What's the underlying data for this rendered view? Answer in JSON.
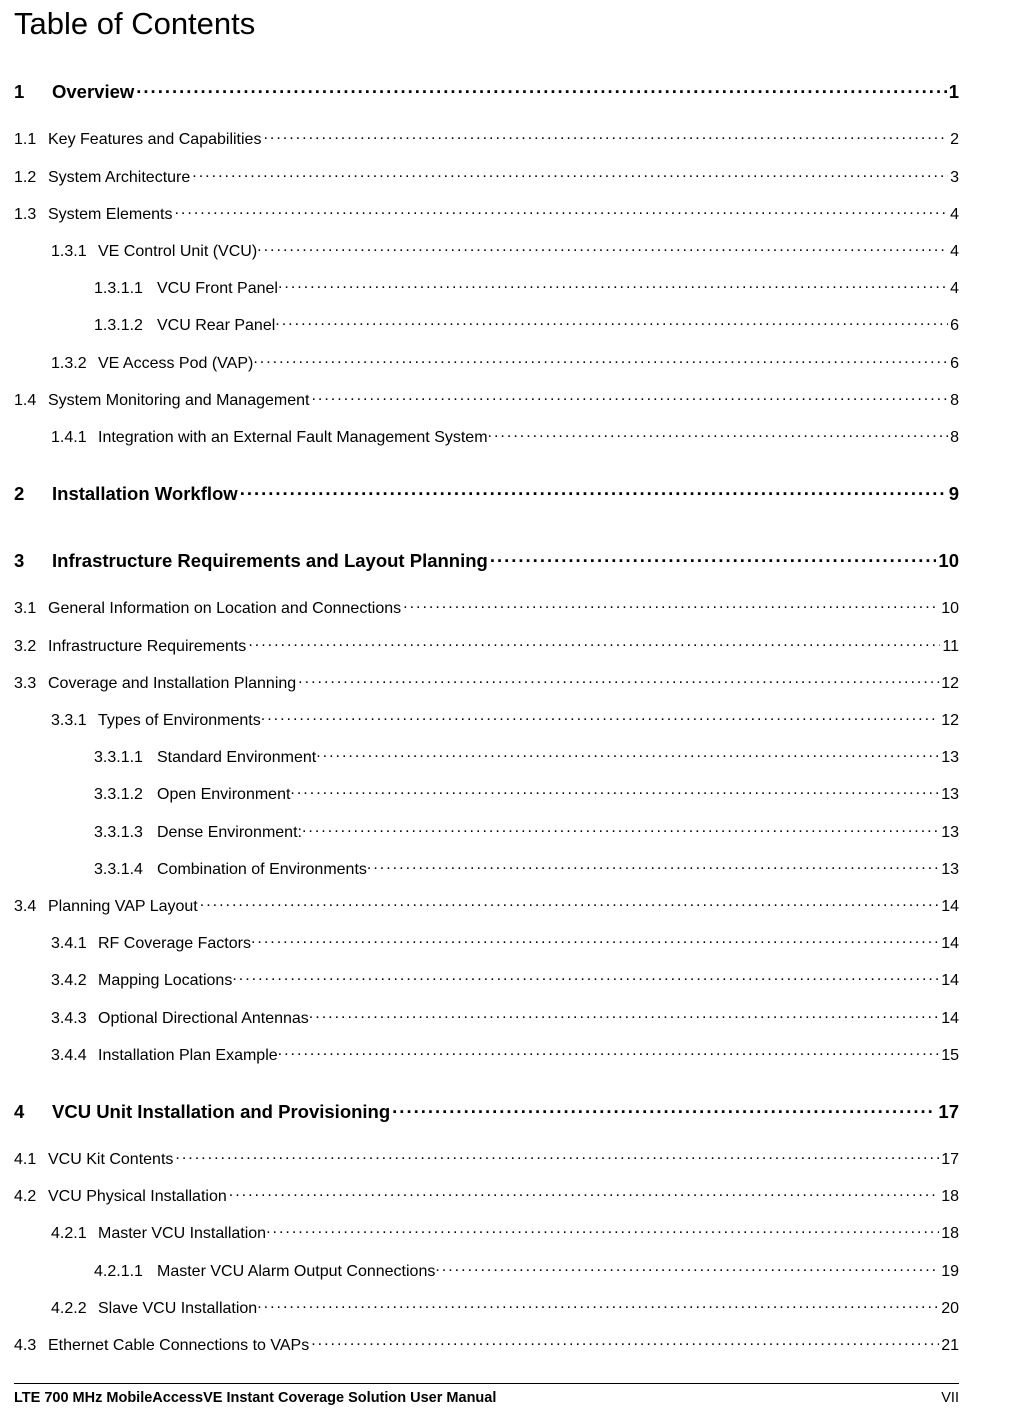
{
  "title": "Table of Contents",
  "footer": {
    "left": "LTE 700 MHz MobileAccessVE Instant Coverage Solution User Manual",
    "right": "VII"
  },
  "toc": [
    {
      "n": "1",
      "t": "Overview",
      "p": "1",
      "lvl": 1
    },
    {
      "n": "1.1",
      "t": "Key Features and Capabilities",
      "p": "2",
      "lvl": 2
    },
    {
      "n": "1.2",
      "t": "System Architecture",
      "p": "3",
      "lvl": 2
    },
    {
      "n": "1.3",
      "t": "System Elements",
      "p": "4",
      "lvl": 2
    },
    {
      "n": "1.3.1",
      "t": "VE Control Unit (VCU)",
      "p": "4",
      "lvl": 3
    },
    {
      "n": "1.3.1.1",
      "t": "VCU Front Panel",
      "p": "4",
      "lvl": 4
    },
    {
      "n": "1.3.1.2",
      "t": "VCU Rear Panel",
      "p": "6",
      "lvl": 4
    },
    {
      "n": "1.3.2",
      "t": "VE Access Pod (VAP)",
      "p": "6",
      "lvl": 3
    },
    {
      "n": "1.4",
      "t": "System Monitoring and Management",
      "p": "8",
      "lvl": 2
    },
    {
      "n": "1.4.1",
      "t": "Integration with an External Fault Management System",
      "p": "8",
      "lvl": 3
    },
    {
      "gap": true
    },
    {
      "n": "2",
      "t": "Installation Workflow",
      "p": "9",
      "lvl": 1
    },
    {
      "gap": true
    },
    {
      "n": "3",
      "t": "Infrastructure Requirements and Layout Planning",
      "p": "10",
      "lvl": 1
    },
    {
      "n": "3.1",
      "t": "General Information on Location and Connections",
      "p": "10",
      "lvl": 2
    },
    {
      "n": "3.2",
      "t": "Infrastructure Requirements",
      "p": "11",
      "lvl": 2
    },
    {
      "n": "3.3",
      "t": "Coverage and Installation Planning",
      "p": "12",
      "lvl": 2
    },
    {
      "n": "3.3.1",
      "t": "Types of Environments",
      "p": "12",
      "lvl": 3
    },
    {
      "n": "3.3.1.1",
      "t": "Standard Environment",
      "p": "13",
      "lvl": 4
    },
    {
      "n": "3.3.1.2",
      "t": "Open Environment",
      "p": "13",
      "lvl": 4
    },
    {
      "n": "3.3.1.3",
      "t": "Dense Environment:",
      "p": "13",
      "lvl": 4
    },
    {
      "n": "3.3.1.4",
      "t": "Combination of Environments",
      "p": "13",
      "lvl": 4
    },
    {
      "n": "3.4",
      "t": "Planning VAP Layout",
      "p": "14",
      "lvl": 2
    },
    {
      "n": "3.4.1",
      "t": "RF Coverage Factors",
      "p": "14",
      "lvl": 3
    },
    {
      "n": "3.4.2",
      "t": "Mapping Locations",
      "p": "14",
      "lvl": 3
    },
    {
      "n": "3.4.3",
      "t": "Optional Directional Antennas",
      "p": "14",
      "lvl": 3
    },
    {
      "n": "3.4.4",
      "t": "Installation Plan Example",
      "p": "15",
      "lvl": 3
    },
    {
      "gap": true
    },
    {
      "n": "4",
      "t": "VCU Unit Installation and Provisioning",
      "p": "17",
      "lvl": 1
    },
    {
      "n": "4.1",
      "t": "VCU Kit Contents",
      "p": "17",
      "lvl": 2
    },
    {
      "n": "4.2",
      "t": "VCU Physical Installation",
      "p": "18",
      "lvl": 2
    },
    {
      "n": "4.2.1",
      "t": "Master VCU Installation",
      "p": "18",
      "lvl": 3
    },
    {
      "n": "4.2.1.1",
      "t": "Master VCU Alarm Output Connections",
      "p": "19",
      "lvl": 4
    },
    {
      "n": "4.2.2",
      "t": "Slave VCU Installation",
      "p": "20",
      "lvl": 3
    },
    {
      "n": "4.3",
      "t": "Ethernet Cable Connections to VAPs",
      "p": "21",
      "lvl": 2
    }
  ]
}
